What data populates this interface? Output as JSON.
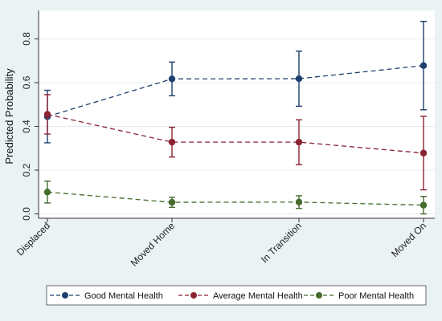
{
  "chart_data": {
    "type": "line",
    "title": "",
    "xlabel": "",
    "ylabel": "Predicted Probability",
    "categories": [
      "Displaced",
      "Moved Home",
      "In Transition",
      "Moved On"
    ],
    "ylim": [
      -0.02,
      0.93
    ],
    "yticks": [
      "0.0",
      "0.2",
      "0.4",
      "0.6",
      "0.8"
    ],
    "grid": "horizontal",
    "legend_position": "bottom",
    "series": [
      {
        "name": "Good Mental Health",
        "color": "#1f3f6e",
        "values": [
          0.445,
          0.617,
          0.618,
          0.678
        ],
        "ci_low": [
          0.325,
          0.54,
          0.492,
          0.476
        ],
        "ci_high": [
          0.565,
          0.694,
          0.744,
          0.88
        ]
      },
      {
        "name": "Average Mental Health",
        "color": "#8b2332",
        "values": [
          0.455,
          0.328,
          0.328,
          0.278
        ],
        "ci_low": [
          0.365,
          0.26,
          0.225,
          0.11
        ],
        "ci_high": [
          0.545,
          0.396,
          0.43,
          0.446
        ]
      },
      {
        "name": "Poor Mental Health",
        "color": "#466b2c",
        "values": [
          0.1,
          0.053,
          0.054,
          0.04
        ],
        "ci_low": [
          0.05,
          0.03,
          0.025,
          0.0
        ],
        "ci_high": [
          0.15,
          0.076,
          0.083,
          0.08
        ]
      }
    ]
  }
}
